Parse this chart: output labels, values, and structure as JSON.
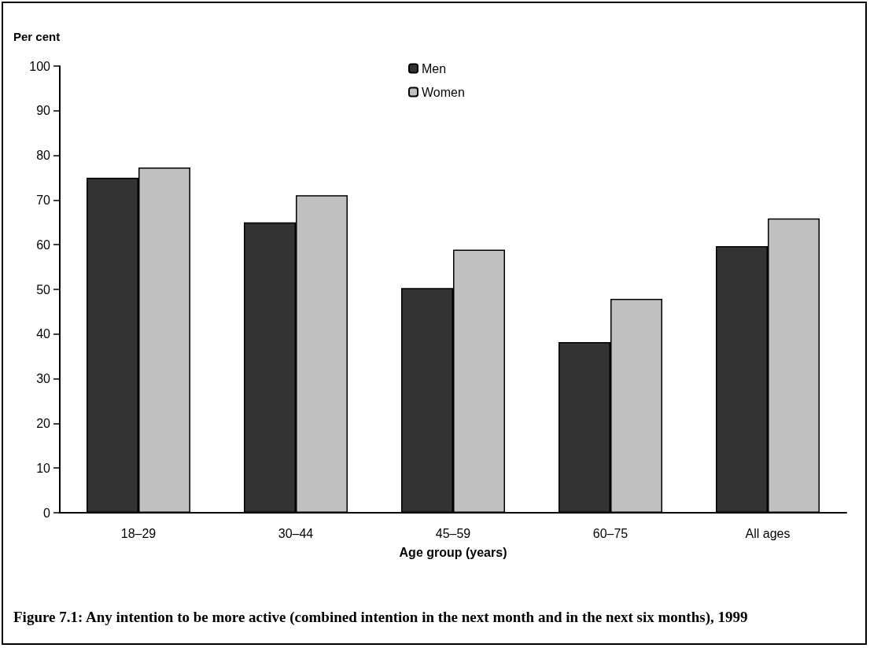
{
  "chart_data": {
    "type": "bar",
    "title": "Figure 7.1: Any intention to be more active (combined intention in the next month and in the next six months), 1999",
    "xlabel": "Age group (years)",
    "ylabel": "Per cent",
    "categories": [
      "18–29",
      "30–44",
      "45–59",
      "60–75",
      "All ages"
    ],
    "series": [
      {
        "name": "Men",
        "color": "#333333",
        "values": [
          75,
          65,
          50.3,
          38.2,
          59.7
        ]
      },
      {
        "name": "Women",
        "color": "#c0c0c0",
        "values": [
          77.3,
          71.1,
          58.9,
          47.9,
          65.9
        ]
      }
    ],
    "ylim": [
      0,
      100
    ],
    "yticks": [
      0,
      10,
      20,
      30,
      40,
      50,
      60,
      70,
      80,
      90,
      100
    ],
    "grid": false,
    "legend": "top"
  }
}
